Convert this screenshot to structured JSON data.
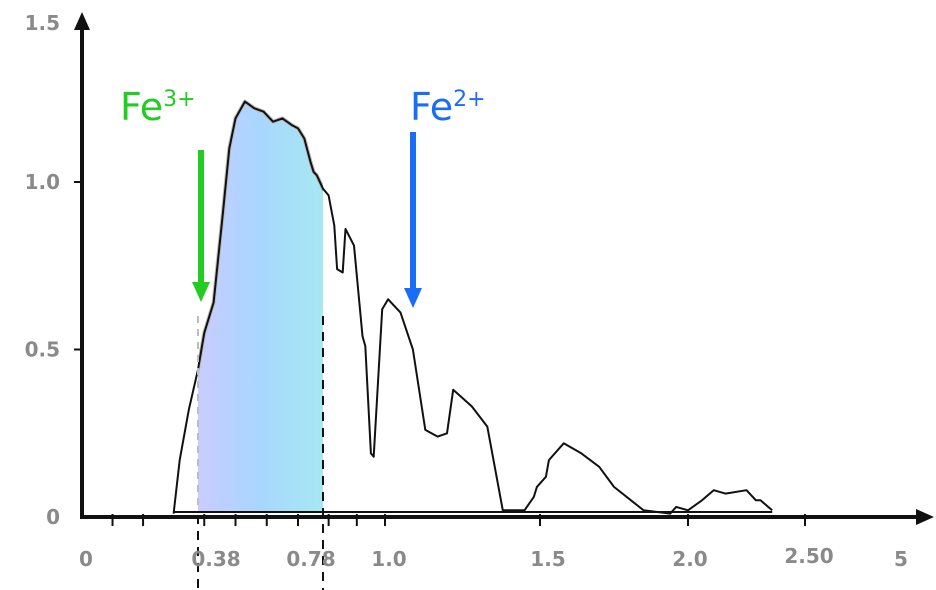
{
  "chart_data": {
    "type": "line",
    "title": "",
    "xlabel": "",
    "ylabel": "",
    "ylim": [
      0,
      1.5
    ],
    "grid": false,
    "x_tick_labels": [
      "0",
      "0.38",
      "0.78",
      "1.0",
      "1.5",
      "2.0",
      "2.50",
      "5"
    ],
    "y_tick_labels": [
      "0",
      "0.5",
      "1.0",
      "1.5"
    ],
    "visible_band": {
      "start": 0.38,
      "end": 0.78
    },
    "series": [
      {
        "x": [
          0.3,
          0.32,
          0.35,
          0.38,
          0.4,
          0.43,
          0.46,
          0.48,
          0.5,
          0.53,
          0.56,
          0.59,
          0.62,
          0.65,
          0.68,
          0.7,
          0.72,
          0.74,
          0.75,
          0.76,
          0.78,
          0.8,
          0.82,
          0.83,
          0.85,
          0.86,
          0.89,
          0.92,
          0.93,
          0.95,
          0.96,
          0.99,
          1.01,
          1.05,
          1.09,
          1.13,
          1.17,
          1.2,
          1.22,
          1.28,
          1.33,
          1.38,
          1.45,
          1.48,
          1.49,
          1.52,
          1.53,
          1.58,
          1.64,
          1.7,
          1.75,
          1.85,
          1.94,
          1.96,
          2.0,
          2.06,
          2.11,
          2.16,
          2.25,
          2.29,
          2.31,
          2.36
        ],
        "y": [
          0.01,
          0.17,
          0.32,
          0.44,
          0.55,
          0.64,
          0.91,
          1.1,
          1.19,
          1.24,
          1.22,
          1.21,
          1.18,
          1.19,
          1.17,
          1.16,
          1.13,
          1.06,
          1.03,
          1.02,
          0.98,
          0.96,
          0.87,
          0.74,
          0.73,
          0.86,
          0.81,
          0.54,
          0.51,
          0.19,
          0.18,
          0.62,
          0.65,
          0.61,
          0.5,
          0.26,
          0.24,
          0.25,
          0.38,
          0.33,
          0.27,
          0.02,
          0.02,
          0.06,
          0.09,
          0.12,
          0.17,
          0.22,
          0.19,
          0.15,
          0.09,
          0.02,
          0.01,
          0.03,
          0.02,
          0.05,
          0.08,
          0.07,
          0.08,
          0.05,
          0.05,
          0.02
        ]
      }
    ],
    "annotations": [
      {
        "base": "Fe",
        "charge": "3+",
        "x": 0.38,
        "color": "#22cc22"
      },
      {
        "base": "Fe",
        "charge": "2+",
        "x": 1.05,
        "color": "#1a6ef5"
      }
    ],
    "colors": {
      "axis": "#111111",
      "line": "#111111",
      "band_outline": "#bbbbbb",
      "tick_label": "#8a8a8a"
    }
  }
}
